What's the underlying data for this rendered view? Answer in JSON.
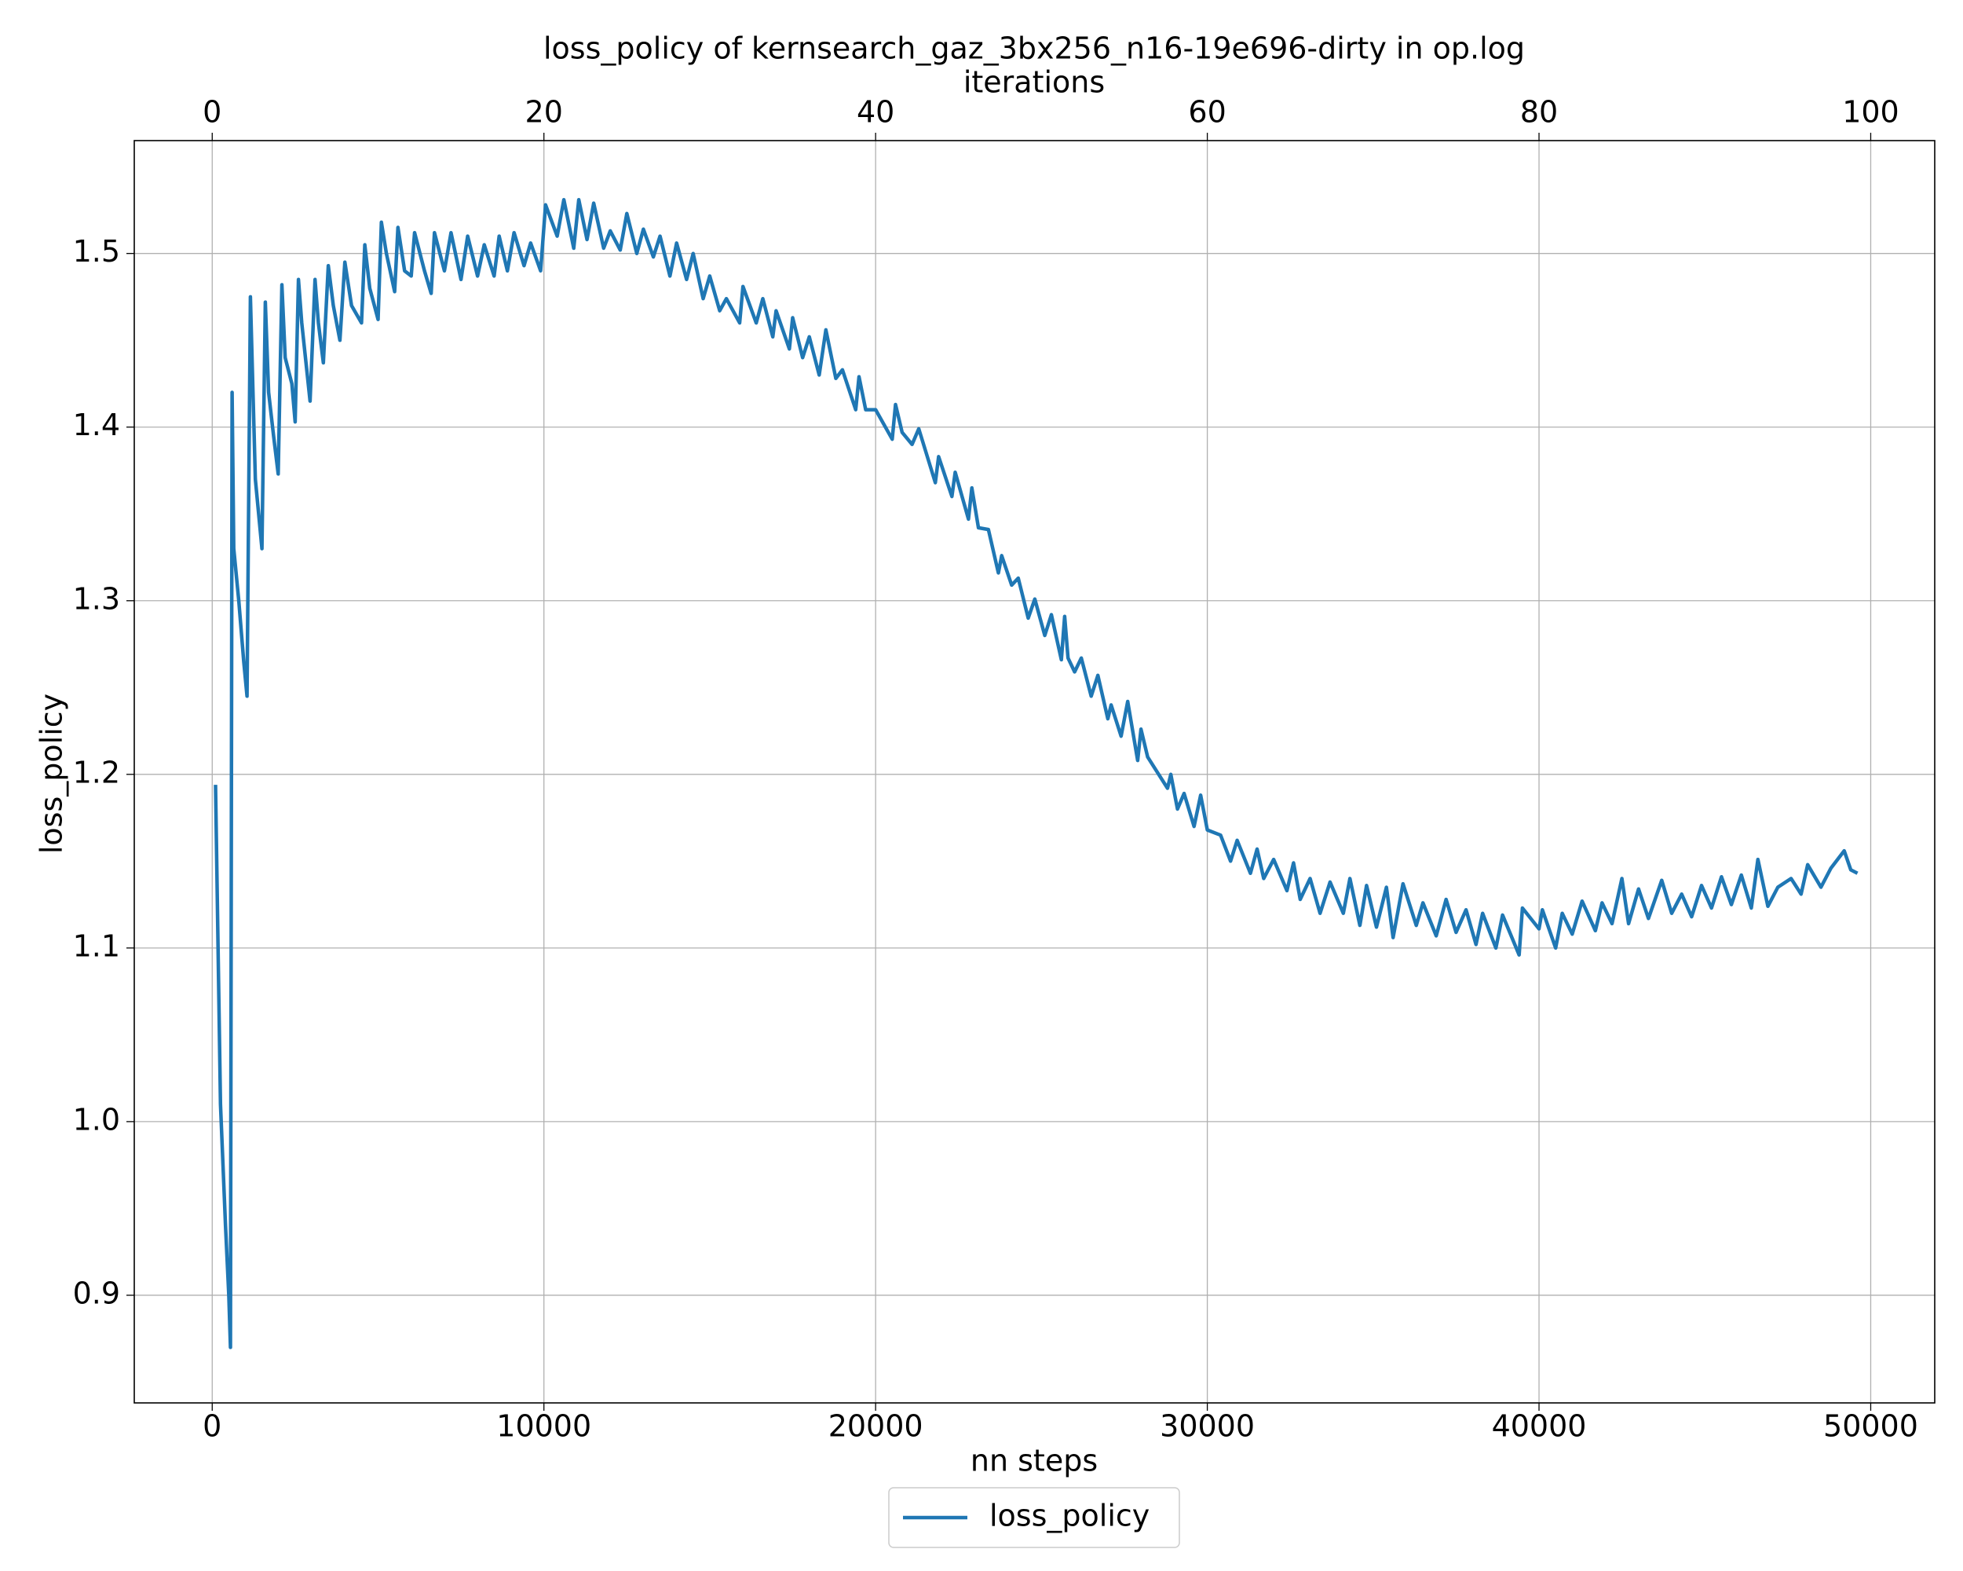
{
  "chart_data": {
    "type": "line",
    "title": "loss_policy of kernsearch_gaz_3bx256_n16-19e696-dirty in op.log",
    "xlabel": "nn steps",
    "ylabel": "loss_policy",
    "x2label": "iterations",
    "x": [
      100,
      250,
      400,
      500,
      550,
      600,
      650,
      800,
      950,
      1050,
      1150,
      1300,
      1500,
      1600,
      1700,
      1850,
      1990,
      2100,
      2200,
      2400,
      2500,
      2600,
      2700,
      2950,
      3100,
      3200,
      3350,
      3500,
      3650,
      3850,
      4000,
      4200,
      4500,
      4600,
      4750,
      5000,
      5100,
      5250,
      5500,
      5600,
      5800,
      6000,
      6100,
      6400,
      6600,
      6700,
      7000,
      7200,
      7500,
      7700,
      8000,
      8200,
      8500,
      8650,
      8900,
      9100,
      9400,
      9600,
      9900,
      10050,
      10400,
      10600,
      10900,
      11050,
      11300,
      11500,
      11800,
      12000,
      12300,
      12500,
      12800,
      13000,
      13300,
      13500,
      13800,
      14000,
      14300,
      14500,
      14800,
      15000,
      15300,
      15500,
      15900,
      16000,
      16400,
      16600,
      16900,
      17000,
      17400,
      17500,
      17800,
      18000,
      18300,
      18500,
      18800,
      19000,
      19400,
      19500,
      19700,
      20000,
      20500,
      20600,
      20800,
      21100,
      21300,
      21800,
      21900,
      22300,
      22400,
      22800,
      22900,
      23100,
      23400,
      23700,
      23800,
      24100,
      24300,
      24600,
      24800,
      25100,
      25300,
      25600,
      25700,
      25800,
      26000,
      26200,
      26500,
      26700,
      27000,
      27100,
      27400,
      27600,
      27900,
      28000,
      28200,
      28500,
      28800,
      28900,
      29100,
      29300,
      29600,
      29800,
      30000,
      30400,
      30700,
      30900,
      31300,
      31500,
      31700,
      32000,
      32400,
      32600,
      32800,
      33100,
      33400,
      33700,
      34100,
      34300,
      34600,
      34800,
      35100,
      35400,
      35600,
      35900,
      36300,
      36500,
      36900,
      37200,
      37500,
      37800,
      38100,
      38300,
      38700,
      38900,
      39400,
      39500,
      40000,
      40100,
      40500,
      40700,
      41000,
      41300,
      41700,
      41900,
      42200,
      42500,
      42700,
      43000,
      43300,
      43700,
      44000,
      44300,
      44600,
      44900,
      45200,
      45500,
      45800,
      46100,
      46400,
      46600,
      46900,
      47200,
      47600,
      47900,
      48100,
      48500,
      48800,
      49200,
      49400,
      49600
    ],
    "series": [
      {
        "name": "loss_policy",
        "color": "#1f77b4",
        "values": [
          1.194,
          1.01,
          0.94,
          0.9,
          0.87,
          1.42,
          1.33,
          1.3,
          1.265,
          1.245,
          1.475,
          1.37,
          1.33,
          1.472,
          1.42,
          1.395,
          1.373,
          1.482,
          1.44,
          1.425,
          1.403,
          1.485,
          1.46,
          1.415,
          1.485,
          1.46,
          1.437,
          1.493,
          1.47,
          1.45,
          1.495,
          1.47,
          1.46,
          1.505,
          1.48,
          1.462,
          1.518,
          1.5,
          1.478,
          1.515,
          1.49,
          1.487,
          1.512,
          1.49,
          1.477,
          1.512,
          1.49,
          1.512,
          1.485,
          1.51,
          1.487,
          1.505,
          1.487,
          1.51,
          1.49,
          1.512,
          1.493,
          1.506,
          1.49,
          1.528,
          1.51,
          1.531,
          1.503,
          1.531,
          1.508,
          1.529,
          1.503,
          1.513,
          1.502,
          1.523,
          1.5,
          1.514,
          1.498,
          1.51,
          1.487,
          1.506,
          1.485,
          1.5,
          1.474,
          1.487,
          1.467,
          1.474,
          1.46,
          1.481,
          1.46,
          1.474,
          1.452,
          1.467,
          1.445,
          1.463,
          1.44,
          1.452,
          1.43,
          1.456,
          1.428,
          1.433,
          1.41,
          1.429,
          1.41,
          1.41,
          1.393,
          1.413,
          1.397,
          1.39,
          1.399,
          1.368,
          1.383,
          1.36,
          1.374,
          1.347,
          1.365,
          1.342,
          1.341,
          1.316,
          1.326,
          1.309,
          1.313,
          1.29,
          1.301,
          1.28,
          1.292,
          1.266,
          1.291,
          1.267,
          1.259,
          1.267,
          1.245,
          1.257,
          1.232,
          1.24,
          1.222,
          1.242,
          1.208,
          1.226,
          1.21,
          1.201,
          1.192,
          1.2,
          1.18,
          1.189,
          1.17,
          1.188,
          1.168,
          1.165,
          1.15,
          1.162,
          1.143,
          1.157,
          1.14,
          1.151,
          1.133,
          1.149,
          1.128,
          1.14,
          1.12,
          1.138,
          1.12,
          1.14,
          1.113,
          1.136,
          1.112,
          1.135,
          1.106,
          1.137,
          1.113,
          1.126,
          1.107,
          1.128,
          1.109,
          1.122,
          1.102,
          1.12,
          1.1,
          1.119,
          1.096,
          1.123,
          1.111,
          1.122,
          1.1,
          1.12,
          1.108,
          1.127,
          1.11,
          1.126,
          1.114,
          1.14,
          1.114,
          1.134,
          1.117,
          1.139,
          1.12,
          1.131,
          1.118,
          1.136,
          1.123,
          1.141,
          1.125,
          1.142,
          1.123,
          1.151,
          1.124,
          1.135,
          1.14,
          1.131,
          1.148,
          1.135,
          1.146,
          1.156,
          1.145,
          1.143
        ]
      }
    ],
    "xlim": [
      -2350,
      51930
    ],
    "xticks": [
      0,
      10000,
      20000,
      30000,
      40000,
      50000
    ],
    "x2lim": [
      -4.7,
      103.86
    ],
    "x2ticks": [
      0,
      20,
      40,
      60,
      80,
      100
    ],
    "ylim": [
      0.838,
      1.565
    ],
    "yticks": [
      0.9,
      {
        "value": 1,
        "label": "1.0"
      },
      1.1,
      1.2,
      1.3,
      1.4,
      1.5
    ],
    "grid": true,
    "legend": "bottom"
  }
}
